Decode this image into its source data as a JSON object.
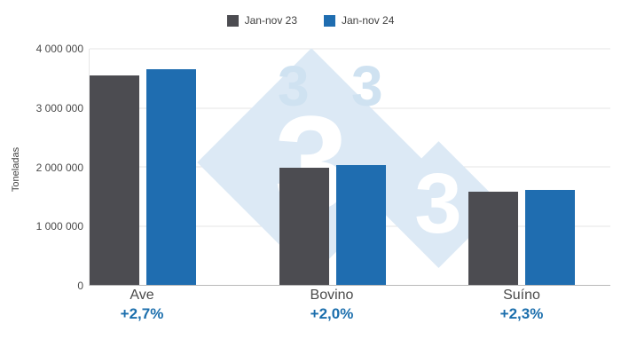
{
  "watermark": {
    "digit": "3",
    "diamond_color": "#dce9f5",
    "digit_color": "#ffffff",
    "faint_digit_color": "#cfe2f1"
  },
  "chart_data": {
    "type": "bar",
    "title": "",
    "categories": [
      "Ave",
      "Bovino",
      "Suíno"
    ],
    "series": [
      {
        "name": "Jan-nov 23",
        "color": "#4c4c51",
        "values": [
          3555000,
          1990000,
          1575000
        ]
      },
      {
        "name": "Jan-nov 24",
        "color": "#1f6db0",
        "values": [
          3651000,
          2030000,
          1611000
        ]
      }
    ],
    "deltas": [
      "+2,7%",
      "+2,0%",
      "+2,3%"
    ],
    "delta_color": "#1c6fad",
    "xlabel": "",
    "ylabel": "Toneladas",
    "ylim": [
      0,
      4000000
    ],
    "yticks": [
      0,
      1000000,
      2000000,
      3000000,
      4000000
    ],
    "ytick_labels": [
      "0",
      "1 000 000",
      "2 000 000",
      "3 000 000",
      "4 000 000"
    ],
    "grid": true,
    "legend_position": "top-center"
  }
}
